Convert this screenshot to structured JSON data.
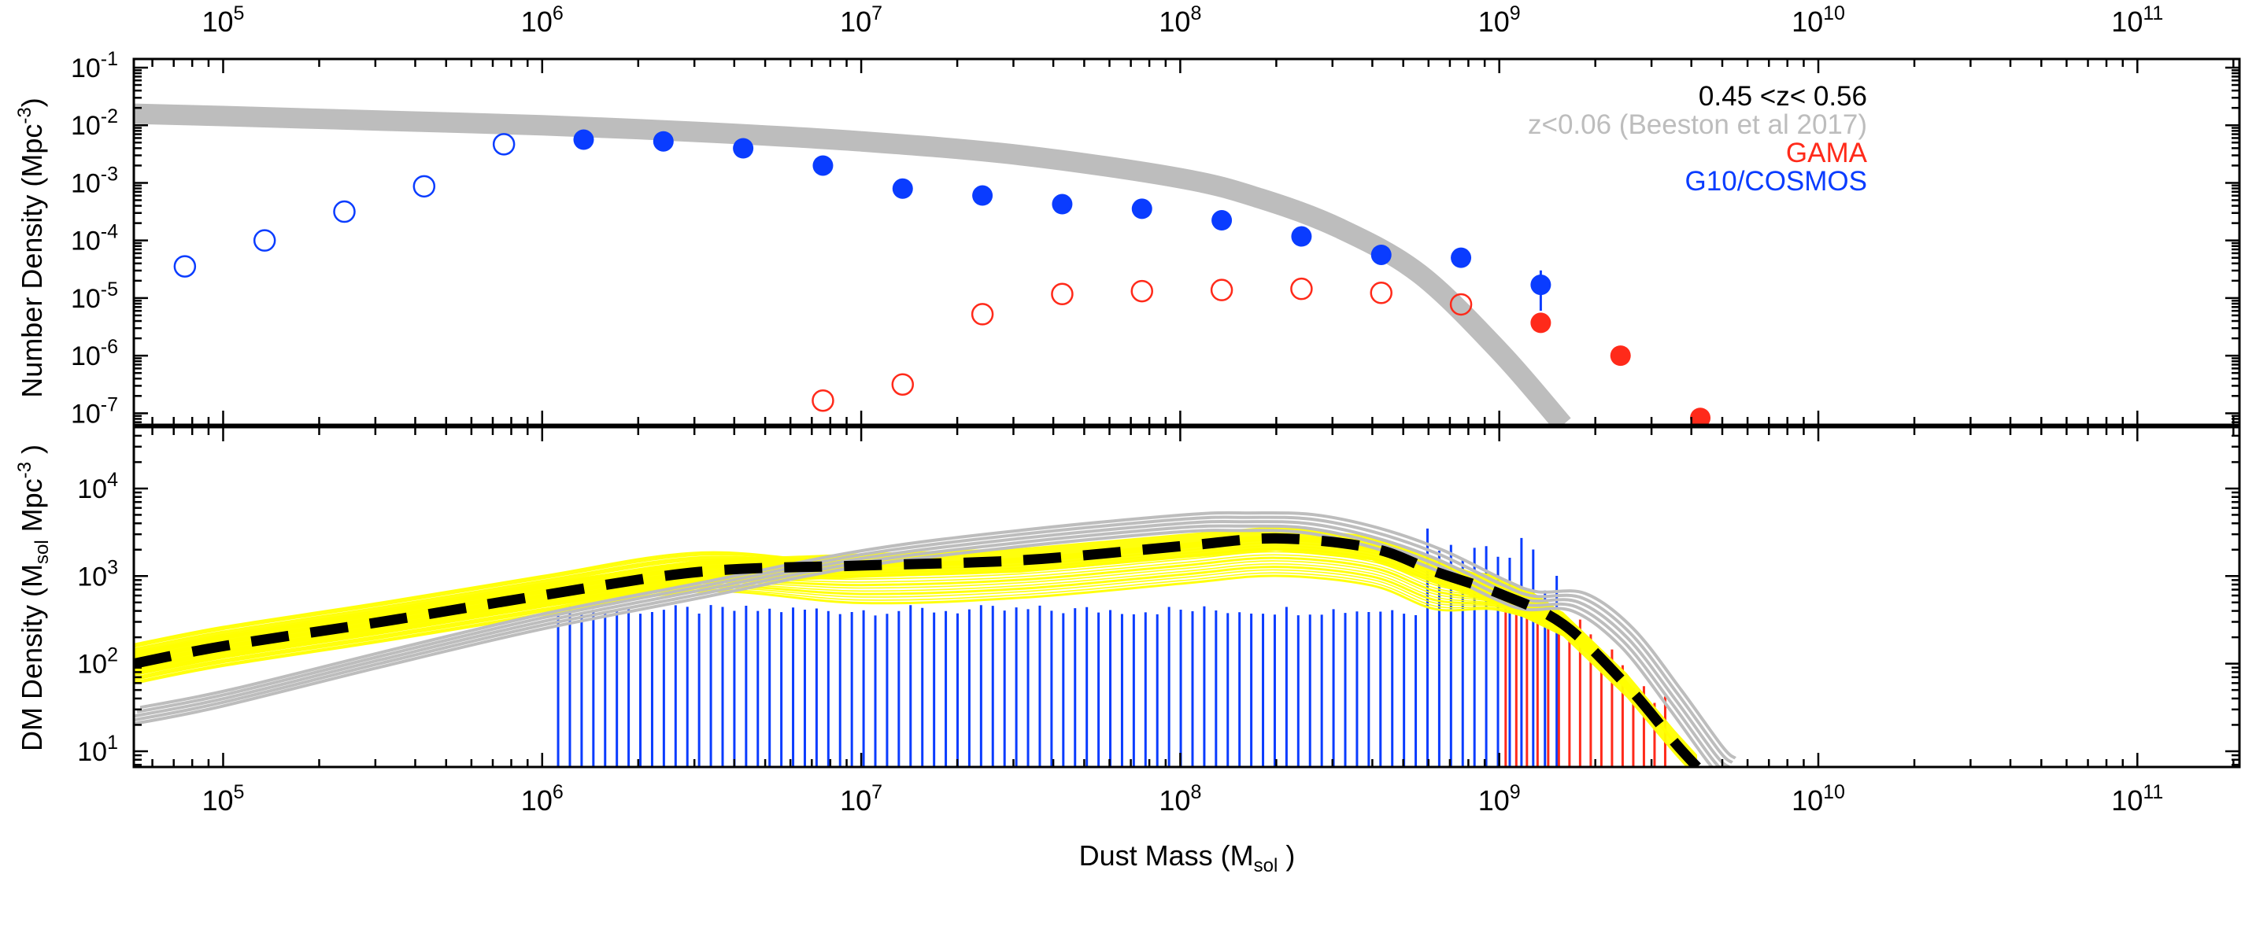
{
  "chart_data": [
    {
      "type": "scatter",
      "panel": "top",
      "title": "",
      "xlabel": "",
      "ylabel": "Number Density (Mpc^-3)",
      "ylabel_parts": [
        "Number Density (Mpc",
        "-3",
        ")"
      ],
      "x_scale": "log",
      "y_scale": "log",
      "xlim_log": [
        4.72,
        11.32
      ],
      "ylim_log": [
        -7.2,
        -0.85
      ],
      "x_tick_exponents": [
        5,
        6,
        7,
        8,
        9,
        10,
        11
      ],
      "y_tick_exponents": [
        -7,
        -6,
        -5,
        -4,
        -3,
        -2,
        -1
      ],
      "legend": {
        "placement": "top-right",
        "entries": [
          {
            "text": "0.45 <z< 0.56",
            "color": "#000000"
          },
          {
            "text": "z<0.06 (Beeston et al 2017)",
            "color": "#bdbdbd"
          },
          {
            "text": "GAMA",
            "color": "#ff2a1a"
          },
          {
            "text": "G10/COSMOS",
            "color": "#0a3cff"
          }
        ]
      },
      "series": [
        {
          "name": "Beeston et al 2017 fit (z<0.06)",
          "kind": "curve",
          "color": "#bdbdbd",
          "log_x": [
            4.72,
            5.0,
            5.5,
            6.0,
            6.5,
            7.0,
            7.5,
            8.0,
            8.25,
            8.5,
            8.75,
            9.0,
            9.2
          ],
          "log_y": [
            -1.8,
            -1.84,
            -1.92,
            -2.0,
            -2.12,
            -2.28,
            -2.52,
            -2.92,
            -3.27,
            -3.79,
            -4.58,
            -5.92,
            -7.2
          ]
        },
        {
          "name": "G10/COSMOS filled",
          "kind": "points",
          "filled": true,
          "color": "#0a3cff",
          "log_x": [
            6.13,
            6.38,
            6.63,
            6.88,
            7.13,
            7.38,
            7.63,
            7.88,
            8.13,
            8.38,
            8.63,
            8.88,
            9.13
          ],
          "log_y": [
            -2.25,
            -2.28,
            -2.4,
            -2.7,
            -3.1,
            -3.22,
            -3.37,
            -3.45,
            -3.65,
            -3.93,
            -4.25,
            -4.3,
            -4.77
          ],
          "err_lo": [
            0,
            0,
            0,
            0,
            0,
            0,
            0,
            0,
            0,
            0.08,
            0.1,
            0.12,
            0.45
          ],
          "err_hi": [
            0,
            0,
            0,
            0,
            0,
            0,
            0,
            0,
            0,
            0.06,
            0.06,
            0.06,
            0.25
          ]
        },
        {
          "name": "G10/COSMOS open",
          "kind": "points",
          "filled": false,
          "color": "#0a3cff",
          "log_x": [
            4.88,
            5.13,
            5.38,
            5.63,
            5.88
          ],
          "log_y": [
            -4.45,
            -4.0,
            -3.5,
            -3.06,
            -2.33
          ]
        },
        {
          "name": "GAMA open",
          "kind": "points",
          "filled": false,
          "color": "#ff2a1a",
          "log_x": [
            6.88,
            7.13,
            7.38,
            7.63,
            7.88,
            8.13,
            8.38,
            8.63,
            8.88
          ],
          "log_y": [
            -6.78,
            -6.5,
            -5.28,
            -4.93,
            -4.88,
            -4.86,
            -4.84,
            -4.91,
            -5.11
          ]
        },
        {
          "name": "GAMA filled",
          "kind": "points",
          "filled": true,
          "color": "#ff2a1a",
          "log_x": [
            9.13,
            9.38,
            9.63
          ],
          "log_y": [
            -5.43,
            -6.0,
            -7.08
          ]
        }
      ]
    },
    {
      "type": "line",
      "panel": "bottom",
      "title": "",
      "xlabel": "Dust Mass (Msol )",
      "xlabel_parts": [
        "Dust Mass (M",
        "sol",
        " )"
      ],
      "ylabel": "DM Density (Msol Mpc^-3 )",
      "ylabel_parts": [
        "DM Density (M",
        "sol",
        " Mpc",
        "-3",
        " )"
      ],
      "x_scale": "log",
      "y_scale": "log",
      "xlim_log": [
        4.72,
        11.32
      ],
      "ylim_log": [
        0.82,
        4.7
      ],
      "x_tick_exponents": [
        5,
        6,
        7,
        8,
        9,
        10,
        11
      ],
      "y_tick_exponents": [
        1,
        2,
        3,
        4
      ],
      "series": [
        {
          "name": "best fit (dashed)",
          "kind": "dashed-curve",
          "color": "#000000",
          "log_x": [
            4.72,
            5.0,
            5.5,
            6.0,
            6.5,
            7.0,
            7.5,
            8.0,
            8.3,
            8.6,
            8.8,
            9.0,
            9.2,
            9.4,
            9.55,
            9.62
          ],
          "log_y": [
            2.0,
            2.2,
            2.48,
            2.78,
            3.05,
            3.12,
            3.18,
            3.34,
            3.43,
            3.32,
            3.05,
            2.8,
            2.45,
            1.75,
            1.1,
            0.82
          ]
        },
        {
          "name": "z<0.06 reference",
          "kind": "curve",
          "color": "#bdbdbd",
          "log_x": [
            4.72,
            5.0,
            5.5,
            6.0,
            6.5,
            7.0,
            7.5,
            8.0,
            8.2,
            8.4,
            8.6,
            8.8,
            9.0,
            9.1,
            9.25,
            9.4,
            9.55,
            9.68,
            9.72
          ],
          "log_y": [
            1.4,
            1.6,
            2.05,
            2.48,
            2.84,
            3.2,
            3.43,
            3.6,
            3.62,
            3.6,
            3.45,
            3.2,
            2.85,
            2.72,
            2.7,
            2.3,
            1.6,
            0.95,
            0.82
          ]
        },
        {
          "name": "G10/COSMOS bins",
          "kind": "spikes",
          "color": "#0a3cff",
          "x_start_log": 6.05,
          "x_end_log": 9.18,
          "n": 86,
          "base_log_y": 2.55
        },
        {
          "name": "GAMA bins",
          "kind": "spikes",
          "color": "#ff2a1a",
          "x_start_log": 9.02,
          "x_end_log": 9.52,
          "n": 16,
          "base_log_y": 2.55
        }
      ]
    }
  ],
  "ticks": {
    "x_label_base": "10",
    "x_exponents_text": [
      "5",
      "6",
      "7",
      "8",
      "9",
      "10",
      "11"
    ],
    "y_top_base": "10",
    "y_top_exponents_text": [
      "-7",
      "-6",
      "-5",
      "-4",
      "-3",
      "-2",
      "-1"
    ],
    "y_bottom_base": "10",
    "y_bottom_exponents_text": [
      "1",
      "2",
      "3",
      "4"
    ]
  },
  "colors": {
    "blue": "#0a3cff",
    "red": "#ff2a1a",
    "grey": "#bdbdbd",
    "yellow": "#ffff00",
    "black": "#000000"
  }
}
